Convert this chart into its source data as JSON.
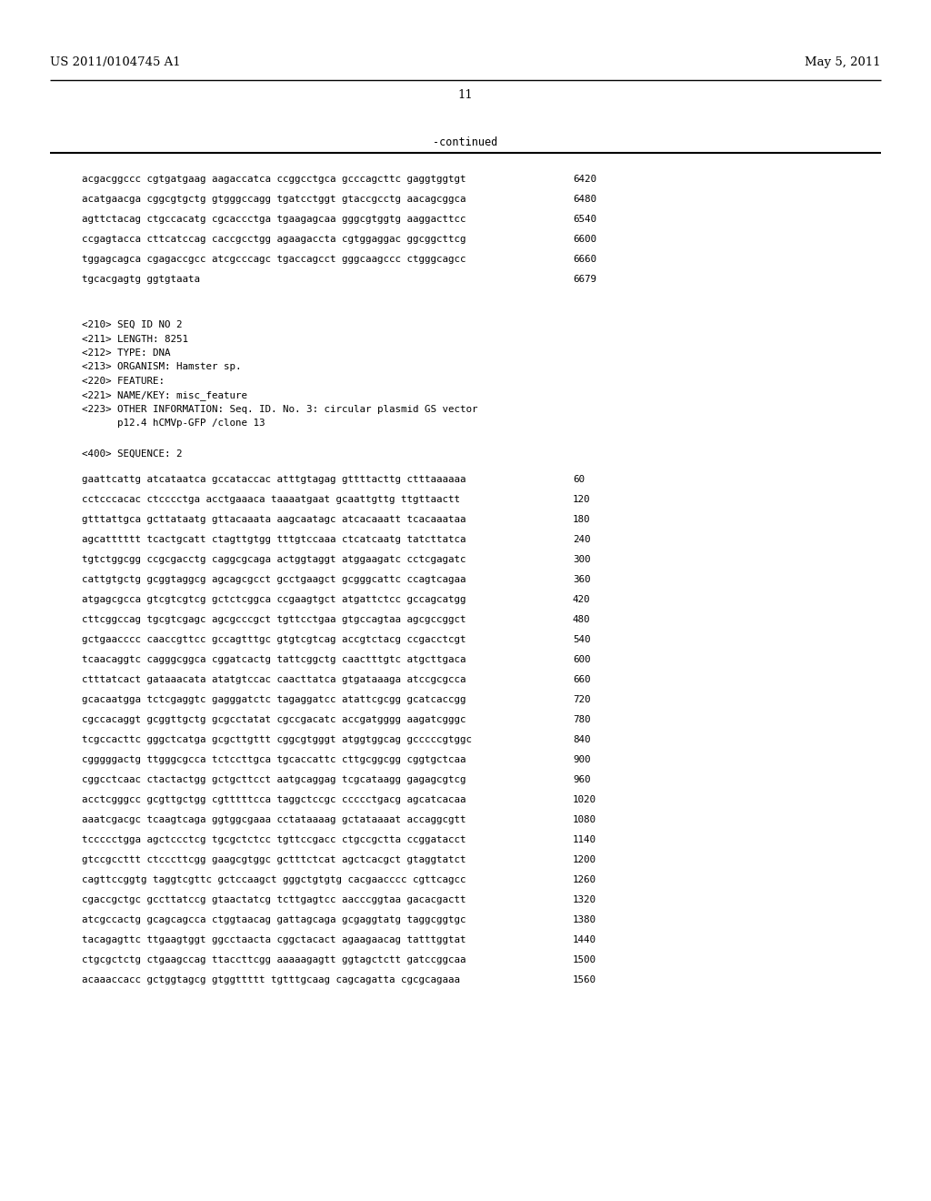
{
  "header_left": "US 2011/0104745 A1",
  "header_right": "May 5, 2011",
  "page_number": "11",
  "continued_label": "-continued",
  "background_color": "#ffffff",
  "text_color": "#000000",
  "font_size_header": 9.5,
  "font_size_body": 7.8,
  "font_size_page_num": 9.5,
  "font_size_continued": 8.5,
  "sequence_lines_top": [
    [
      "acgacggccc cgtgatgaag aagaccatca ccggcctgca gcccagcttc gaggtggtgt",
      "6420"
    ],
    [
      "acatgaacga cggcgtgctg gtgggccagg tgatcctggt gtaccgcctg aacagcggca",
      "6480"
    ],
    [
      "agttctacag ctgccacatg cgcaccctga tgaagagcaa gggcgtggtg aaggacttcc",
      "6540"
    ],
    [
      "ccgagtacca cttcatccag caccgcctgg agaagaccta cgtggaggac ggcggcttcg",
      "6600"
    ],
    [
      "tggagcagca cgagaccgcc atcgcccagc tgaccagcct gggcaagccc ctgggcagcc",
      "6660"
    ],
    [
      "tgcacgagtg ggtgtaata",
      "6679"
    ]
  ],
  "seq_info_lines": [
    "<210> SEQ ID NO 2",
    "<211> LENGTH: 8251",
    "<212> TYPE: DNA",
    "<213> ORGANISM: Hamster sp.",
    "<220> FEATURE:",
    "<221> NAME/KEY: misc_feature",
    "<223> OTHER INFORMATION: Seq. ID. No. 3: circular plasmid GS vector",
    "      p12.4 hCMVp-GFP /clone 13"
  ],
  "seq400_label": "<400> SEQUENCE: 2",
  "sequence_lines_bottom": [
    [
      "gaattcattg atcataatca gccataccac atttgtagag gttttacttg ctttaaaaaa",
      "60"
    ],
    [
      "cctcccacac ctcccctga acctgaaaca taaaatgaat gcaattgttg ttgttaactt",
      "120"
    ],
    [
      "gtttattgca gcttataatg gttacaaata aagcaatagc atcacaaatt tcacaaataa",
      "180"
    ],
    [
      "agcatttttt tcactgcatt ctagttgtgg tttgtccaaa ctcatcaatg tatcttatca",
      "240"
    ],
    [
      "tgtctggcgg ccgcgacctg caggcgcaga actggtaggt atggaagatc cctcgagatc",
      "300"
    ],
    [
      "cattgtgctg gcggtaggcg agcagcgcct gcctgaagct gcgggcattc ccagtcagaa",
      "360"
    ],
    [
      "atgagcgcca gtcgtcgtcg gctctcggca ccgaagtgct atgattctcc gccagcatgg",
      "420"
    ],
    [
      "cttcggccag tgcgtcgagc agcgcccgct tgttcctgaa gtgccagtaa agcgccggct",
      "480"
    ],
    [
      "gctgaacccc caaccgttcc gccagtttgc gtgtcgtcag accgtctacg ccgacctcgt",
      "540"
    ],
    [
      "tcaacaggtc cagggcggca cggatcactg tattcggctg caactttgtc atgcttgaca",
      "600"
    ],
    [
      "ctttatcact gataaacata atatgtccac caacttatca gtgataaaga atccgcgcca",
      "660"
    ],
    [
      "gcacaatgga tctcgaggtc gagggatctc tagaggatcc atattcgcgg gcatcaccgg",
      "720"
    ],
    [
      "cgccacaggt gcggttgctg gcgcctatat cgccgacatc accgatgggg aagatcgggc",
      "780"
    ],
    [
      "tcgccacttc gggctcatga gcgcttgttt cggcgtgggt atggtggcag gcccccgtggc",
      "840"
    ],
    [
      "cgggggactg ttgggcgcca tctccttgca tgcaccattc cttgcggcgg cggtgctcaa",
      "900"
    ],
    [
      "cggcctcaac ctactactgg gctgcttcct aatgcaggag tcgcataagg gagagcgtcg",
      "960"
    ],
    [
      "acctcgggcc gcgttgctgg cgtttttcca taggctccgc ccccctgacg agcatcacaa",
      "1020"
    ],
    [
      "aaatcgacgc tcaagtcaga ggtggcgaaa cctataaaag gctataaaat accaggcgtt",
      "1080"
    ],
    [
      "tccccctgga agctccctcg tgcgctctcc tgttccgacc ctgccgctta ccggatacct",
      "1140"
    ],
    [
      "gtccgccttt ctcccttcgg gaagcgtggc gctttctcat agctcacgct gtaggtatct",
      "1200"
    ],
    [
      "cagttccggtg taggtcgttc gctccaagct gggctgtgtg cacgaacccc cgttcagcc",
      "1260"
    ],
    [
      "cgaccgctgc gccttatccg gtaactatcg tcttgagtcc aacccggtaa gacacgactt",
      "1320"
    ],
    [
      "atcgccactg gcagcagcca ctggtaacag gattagcaga gcgaggtatg taggcggtgc",
      "1380"
    ],
    [
      "tacagagttc ttgaagtggt ggcctaacta cggctacact agaagaacag tatttggtat",
      "1440"
    ],
    [
      "ctgcgctctg ctgaagccag ttaccttcgg aaaaagagtt ggtagctctt gatccggcaa",
      "1500"
    ],
    [
      "acaaaccacc gctggtagcg gtggttttt tgtttgcaag cagcagatta cgcgcagaaa",
      "1560"
    ]
  ]
}
